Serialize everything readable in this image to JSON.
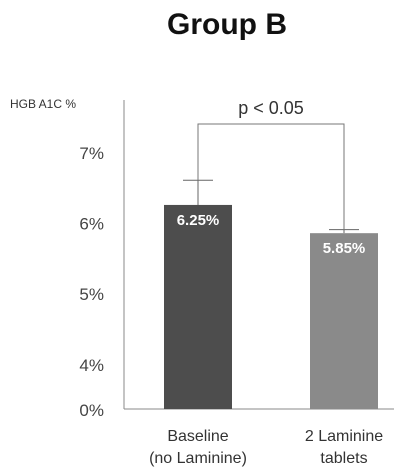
{
  "chart_data": {
    "type": "bar",
    "title": "Group B",
    "ylabel": "HGB A1C %",
    "ytick_labels": [
      "0%",
      "4%",
      "5%",
      "6%",
      "7%"
    ],
    "categories": [
      {
        "lines": [
          "Baseline",
          "(no Laminine)"
        ]
      },
      {
        "lines": [
          "2 Laminine",
          "tablets"
        ]
      }
    ],
    "values": [
      6.25,
      5.85
    ],
    "value_labels": [
      "6.25%",
      "5.85%"
    ],
    "bar_colors": [
      "#4d4d4d",
      "#8a8a8a"
    ],
    "axis_break": {
      "visible_range": [
        3.6,
        7.5
      ],
      "baseline_tick": "0%"
    },
    "error_caps": [
      6.6,
      5.9
    ],
    "annotation": "p < 0.05",
    "grid": false
  }
}
